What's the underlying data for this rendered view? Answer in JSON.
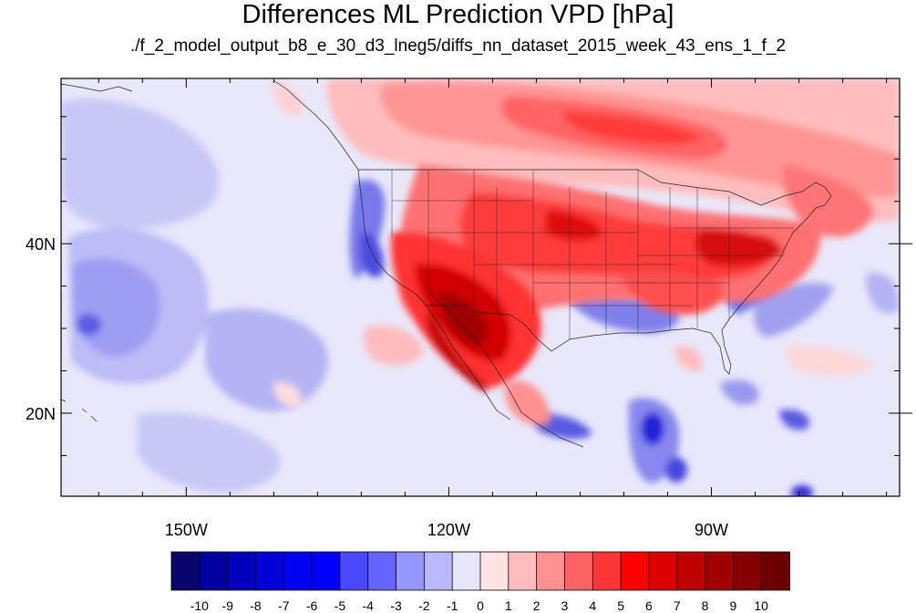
{
  "title": "Differences ML Prediction VPD [hPa]",
  "subtitle": "./f_2_model_output_b8_e_30_d3_lneg5/diffs_nn_dataset_2015_week_43_ens_1_f_2",
  "map": {
    "lon_range": [
      -164.3,
      -68.5
    ],
    "lat_range": [
      10.2,
      59.5
    ],
    "lon_ticks": [
      {
        "lon": -150,
        "label": "150W"
      },
      {
        "lon": -120,
        "label": "120W"
      },
      {
        "lon": -90,
        "label": "90W"
      }
    ],
    "lat_ticks": [
      {
        "lat": 40,
        "label": "40N"
      },
      {
        "lat": 20,
        "label": "20N"
      }
    ],
    "lon_minor": [
      -160,
      -155,
      -145,
      -140,
      -135,
      -130,
      -125,
      -115,
      -110,
      -105,
      -100,
      -95,
      -85,
      -80,
      -75,
      -70
    ],
    "lat_minor": [
      15,
      25,
      30,
      35,
      45,
      50,
      55
    ],
    "background_color": "#e8e8fa"
  },
  "colorbar": {
    "levels": [
      "-10",
      "-9",
      "-8",
      "-7",
      "-6",
      "-5",
      "-4",
      "-3",
      "-2",
      "-1",
      "0",
      "1",
      "2",
      "3",
      "4",
      "5",
      "6",
      "7",
      "8",
      "9",
      "10"
    ],
    "colors": [
      "#06066c",
      "#0000a0",
      "#0000bc",
      "#0000d8",
      "#0000f0",
      "#0000ff",
      "#4848ff",
      "#6464ff",
      "#9696ff",
      "#b8b8fc",
      "#e6e6fa",
      "#ffe4e4",
      "#ffbcbc",
      "#ff9090",
      "#ff6262",
      "#ff3434",
      "#ff0000",
      "#dc0000",
      "#be0000",
      "#a00000",
      "#870000",
      "#6c0000"
    ]
  }
}
